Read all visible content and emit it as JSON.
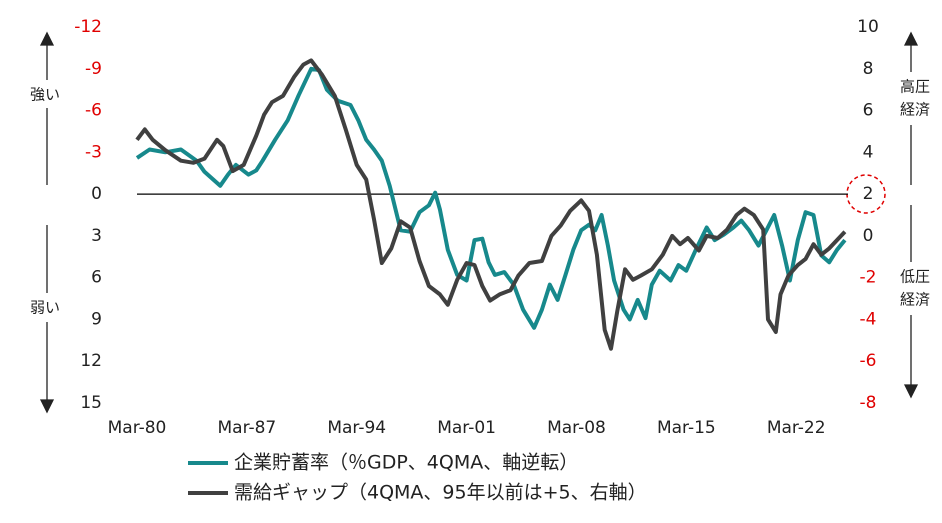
{
  "chart_data": {
    "type": "line",
    "xlim": [
      1980.2,
      2025.5
    ],
    "xticks": [
      {
        "value": 1980.2,
        "label": "Mar-80"
      },
      {
        "value": 1987.2,
        "label": "Mar-87"
      },
      {
        "value": 1994.2,
        "label": "Mar-94"
      },
      {
        "value": 2001.2,
        "label": "Mar-01"
      },
      {
        "value": 2008.2,
        "label": "Mar-08"
      },
      {
        "value": 2015.2,
        "label": "Mar-15"
      },
      {
        "value": 2022.2,
        "label": "Mar-22"
      }
    ],
    "ylim": [
      -12,
      15
    ],
    "y_inverted": true,
    "yticks": [
      -12,
      -9,
      -6,
      -3,
      0,
      3,
      6,
      9,
      12,
      15
    ],
    "y2lim": [
      -8,
      10
    ],
    "y2ticks": [
      10,
      8,
      6,
      4,
      2,
      0,
      -2,
      -4,
      -6,
      -8
    ],
    "negative_tick_color": "#e00000",
    "annotations": {
      "left_top": "強い",
      "left_bottom": "弱い",
      "right_top": [
        "高圧",
        "経済"
      ],
      "right_bottom": [
        "低圧",
        "経済"
      ]
    },
    "series": [
      {
        "name": "企業貯蓄率（％GDP、4QMA、軸逆転）",
        "color": "#17898c",
        "x": [
          1980.2,
          1981,
          1982,
          1983,
          1984,
          1984.5,
          1985.5,
          1986,
          1986.5,
          1987.3,
          1987.8,
          1988.2,
          1989,
          1989.8,
          1990.5,
          1991.3,
          1991.8,
          1992.3,
          1993,
          1993.8,
          1994.3,
          1994.8,
          1995.3,
          1995.8,
          1996.3,
          1997,
          1997.6,
          1998.2,
          1998.8,
          1999.2,
          1999.5,
          2000,
          2000.6,
          2001.2,
          2001.7,
          2002.2,
          2002.6,
          2003,
          2003.6,
          2004.2,
          2004.8,
          2005.5,
          2006,
          2006.5,
          2007,
          2007.5,
          2008,
          2008.5,
          2009,
          2009.4,
          2009.8,
          2010.2,
          2010.6,
          2011.2,
          2011.6,
          2012.1,
          2012.6,
          2013,
          2013.5,
          2014.2,
          2014.7,
          2015.2,
          2015.8,
          2016.5,
          2017,
          2017.6,
          2018.2,
          2018.7,
          2019.2,
          2019.8,
          2020.3,
          2020.8,
          2021.3,
          2021.8,
          2022.3,
          2022.8,
          2023.3,
          2023.8,
          2024.3,
          2024.8,
          2025.3
        ],
        "values": [
          -2.6,
          -3.2,
          -3.0,
          -3.2,
          -2.4,
          -1.6,
          -0.6,
          -1.4,
          -2.1,
          -1.4,
          -1.7,
          -2.4,
          -3.9,
          -5.3,
          -7.1,
          -9.0,
          -8.9,
          -7.5,
          -6.7,
          -6.4,
          -5.3,
          -3.9,
          -3.2,
          -2.4,
          -0.6,
          2.6,
          2.7,
          1.3,
          0.8,
          -0.1,
          1.1,
          4.0,
          5.8,
          6.2,
          3.3,
          3.2,
          4.9,
          5.8,
          5.6,
          6.5,
          8.3,
          9.6,
          8.3,
          6.5,
          7.6,
          5.8,
          4.0,
          2.6,
          2.2,
          2.6,
          1.5,
          3.7,
          6.2,
          8.3,
          9.0,
          7.6,
          8.9,
          6.5,
          5.5,
          6.2,
          5.1,
          5.5,
          4.0,
          2.4,
          3.3,
          2.9,
          2.4,
          1.9,
          2.6,
          3.7,
          2.6,
          1.5,
          3.7,
          6.2,
          3.3,
          1.3,
          1.5,
          4.4,
          4.9,
          4.0,
          3.3
        ]
      },
      {
        "name": "需給ギャップ（4QMA、95年以前は+5、右軸）",
        "color": "#404040",
        "axis": "y2",
        "x": [
          1980.2,
          1980.7,
          1981.2,
          1982,
          1983,
          1983.8,
          1984.5,
          1985.3,
          1985.7,
          1986.3,
          1987,
          1987.8,
          1988.3,
          1988.8,
          1989.5,
          1990.2,
          1990.8,
          1991.3,
          1992,
          1992.8,
          1993.5,
          1994.2,
          1994.8,
          1995.3,
          1995.8,
          1996.4,
          1997,
          1997.6,
          1998.2,
          1998.8,
          1999.5,
          2000,
          2000.6,
          2001.2,
          2001.7,
          2002.2,
          2002.7,
          2003.3,
          2004,
          2004.5,
          2005.2,
          2006,
          2006.6,
          2007.2,
          2007.8,
          2008.5,
          2009,
          2009.5,
          2010,
          2010.4,
          2010.8,
          2011.3,
          2011.8,
          2012.3,
          2013,
          2013.7,
          2014.3,
          2014.8,
          2015.3,
          2016,
          2016.5,
          2017.2,
          2017.8,
          2018.4,
          2018.9,
          2019.5,
          2020.1,
          2020.4,
          2020.9,
          2021.2,
          2021.7,
          2022.3,
          2022.8,
          2023.3,
          2023.8,
          2024.3,
          2024.8,
          2025.3
        ],
        "values": [
          4.6,
          5.1,
          4.6,
          4.1,
          3.6,
          3.5,
          3.7,
          4.6,
          4.3,
          3.1,
          3.4,
          4.8,
          5.8,
          6.4,
          6.7,
          7.6,
          8.2,
          8.4,
          7.7,
          6.7,
          5.1,
          3.4,
          2.7,
          0.8,
          -1.3,
          -0.6,
          0.7,
          0.4,
          -1.2,
          -2.4,
          -2.8,
          -3.3,
          -2.1,
          -1.3,
          -1.4,
          -2.4,
          -3.1,
          -2.8,
          -2.6,
          -1.9,
          -1.3,
          -1.2,
          0.0,
          0.5,
          1.2,
          1.7,
          1.2,
          -0.9,
          -4.5,
          -5.4,
          -3.6,
          -1.6,
          -2.1,
          -1.9,
          -1.6,
          -0.9,
          0.0,
          -0.4,
          -0.1,
          -0.7,
          0.0,
          -0.1,
          0.3,
          1.0,
          1.3,
          1.0,
          0.3,
          -4.0,
          -4.6,
          -2.8,
          -1.9,
          -1.4,
          -1.1,
          -0.4,
          -0.9,
          -0.6,
          -0.2,
          0.2
        ]
      }
    ]
  }
}
